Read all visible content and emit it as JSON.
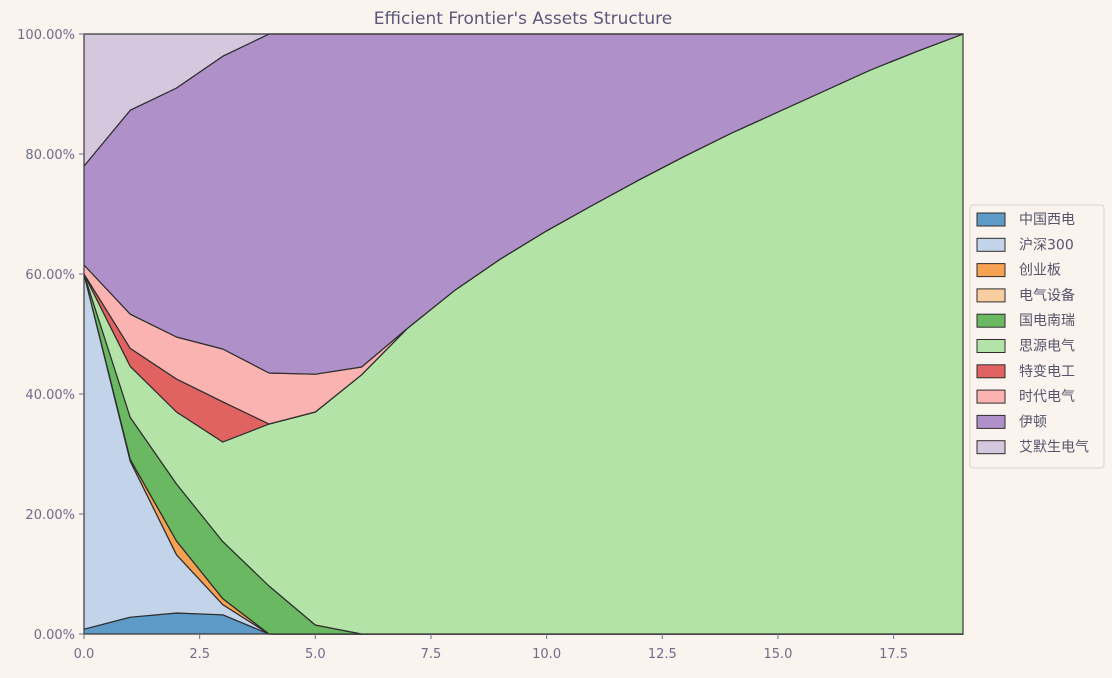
{
  "chart_data": {
    "type": "area",
    "stacked": true,
    "title": "Efficient Frontier's Assets Structure",
    "xlabel": "",
    "ylabel": "",
    "xlim": [
      0,
      19
    ],
    "ylim": [
      0,
      1
    ],
    "x_ticks": [
      0,
      2.5,
      5,
      7.5,
      10,
      12.5,
      15,
      17.5
    ],
    "x_tick_labels": [
      "0.0",
      "2.5",
      "5.0",
      "7.5",
      "10.0",
      "12.5",
      "15.0",
      "17.5"
    ],
    "y_ticks": [
      0,
      0.2,
      0.4,
      0.6,
      0.8,
      1.0
    ],
    "y_tick_labels": [
      "0.00%",
      "20.00%",
      "40.00%",
      "60.00%",
      "80.00%",
      "100.00%"
    ],
    "legend_position": "right",
    "x": [
      0,
      1,
      2,
      3,
      4,
      5,
      6,
      7,
      8,
      9,
      10,
      11,
      12,
      13,
      14,
      15,
      16,
      17,
      18,
      19
    ],
    "series": [
      {
        "name": "中国西电",
        "color": "#5e9ac8",
        "values": [
          0.008,
          0.028,
          0.035,
          0.032,
          0,
          0,
          0,
          0,
          0,
          0,
          0,
          0,
          0,
          0,
          0,
          0,
          0,
          0,
          0,
          0
        ]
      },
      {
        "name": "沪深300",
        "color": "#c3d4ea",
        "values": [
          0.592,
          0.26,
          0.097,
          0.017,
          0,
          0,
          0,
          0,
          0,
          0,
          0,
          0,
          0,
          0,
          0,
          0,
          0,
          0,
          0,
          0
        ]
      },
      {
        "name": "创业板",
        "color": "#f7a152",
        "values": [
          0,
          0.003,
          0.023,
          0.01,
          0,
          0,
          0,
          0,
          0,
          0,
          0,
          0,
          0,
          0,
          0,
          0,
          0,
          0,
          0,
          0
        ]
      },
      {
        "name": "电气设备",
        "color": "#f8cd9f",
        "values": [
          0,
          0,
          0,
          0,
          0,
          0,
          0,
          0,
          0,
          0,
          0,
          0,
          0,
          0,
          0,
          0,
          0,
          0,
          0,
          0
        ]
      },
      {
        "name": "国电南瑞",
        "color": "#6ab862",
        "values": [
          0,
          0.07,
          0.095,
          0.095,
          0.08,
          0.015,
          0,
          0,
          0,
          0,
          0,
          0,
          0,
          0,
          0,
          0,
          0,
          0,
          0,
          0
        ]
      },
      {
        "name": "思源电气",
        "color": "#b4e3a8",
        "values": [
          0,
          0.085,
          0.12,
          0.166,
          0.27,
          0.355,
          0.432,
          0.51,
          0.572,
          0.625,
          0.672,
          0.715,
          0.757,
          0.797,
          0.835,
          0.87,
          0.905,
          0.94,
          0.971,
          1.0
        ]
      },
      {
        "name": "特变电工",
        "color": "#e06362",
        "values": [
          0,
          0.03,
          0.055,
          0.067,
          0,
          0,
          0,
          0,
          0,
          0,
          0,
          0,
          0,
          0,
          0,
          0,
          0,
          0,
          0,
          0
        ]
      },
      {
        "name": "时代电气",
        "color": "#fab3b0",
        "values": [
          0.015,
          0.057,
          0.07,
          0.088,
          0.085,
          0.063,
          0.013,
          0,
          0,
          0,
          0,
          0,
          0,
          0,
          0,
          0,
          0,
          0,
          0,
          0
        ]
      },
      {
        "name": "伊顿",
        "color": "#b090c9",
        "values": [
          0.165,
          0.34,
          0.415,
          0.488,
          0.565,
          0.567,
          0.555,
          0.49,
          0.428,
          0.375,
          0.328,
          0.285,
          0.243,
          0.203,
          0.165,
          0.13,
          0.095,
          0.06,
          0.029,
          0
        ]
      },
      {
        "name": "艾默生电气",
        "color": "#d5c7dd",
        "values": [
          0.22,
          0.127,
          0.09,
          0.037,
          0,
          0,
          0,
          0,
          0,
          0,
          0,
          0,
          0,
          0,
          0,
          0,
          0,
          0,
          0,
          0
        ]
      }
    ]
  }
}
